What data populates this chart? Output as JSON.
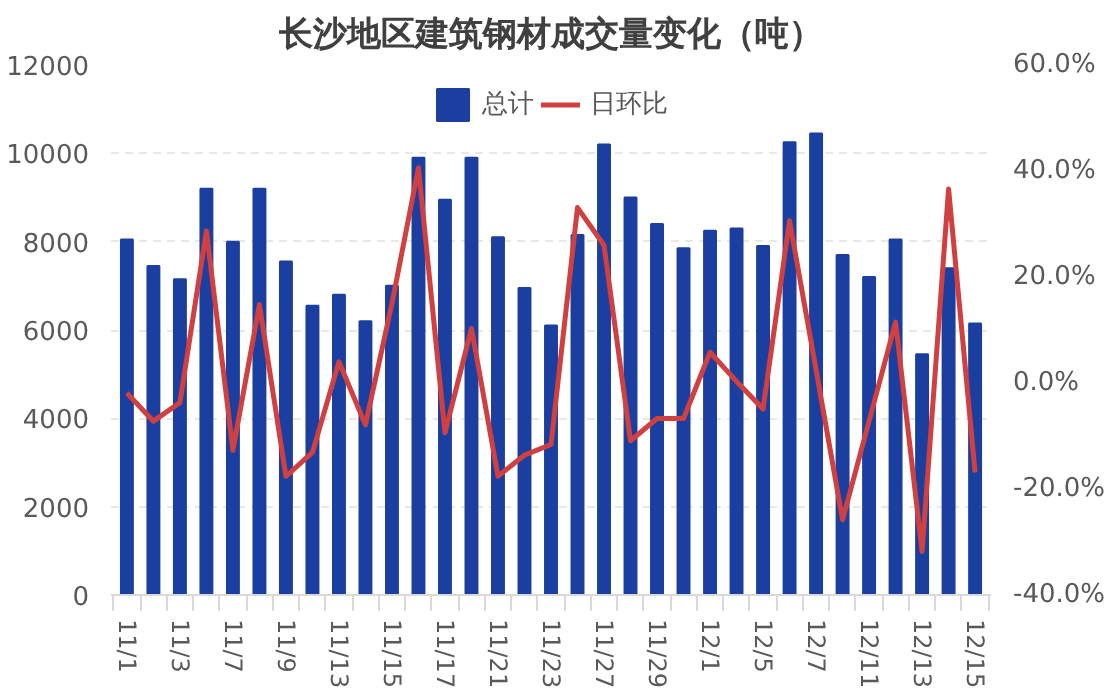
{
  "chart_data": {
    "type": "bar",
    "title": "长沙地区建筑钢材成交量变化（吨）",
    "categories": [
      "11/1",
      null,
      "11/3",
      null,
      "11/7",
      null,
      "11/9",
      null,
      "11/13",
      null,
      "11/15",
      null,
      "11/17",
      null,
      "11/21",
      null,
      "11/23",
      null,
      "11/27",
      null,
      "11/29",
      null,
      "12/1",
      null,
      "12/5",
      null,
      "12/7",
      null,
      "12/11",
      null,
      "12/13",
      null,
      "12/15"
    ],
    "series": [
      {
        "name": "总计",
        "color": "#1a3fa0",
        "values": [
          8050,
          7450,
          7150,
          9200,
          8000,
          9200,
          7550,
          6550,
          6800,
          6200,
          7000,
          9900,
          8950,
          9900,
          8100,
          6950,
          6100,
          8150,
          10200,
          9000,
          8400,
          7850,
          8250,
          8300,
          7900,
          10250,
          10450,
          7700,
          7200,
          8050,
          5450,
          7400,
          6150
        ]
      },
      {
        "name": "日环比",
        "type": "line",
        "axis": "y2",
        "color": "#d04040",
        "values": [
          -1.9,
          -7.2,
          -3.7,
          28.7,
          -12.7,
          14.8,
          -17.6,
          -13.1,
          4.0,
          -7.9,
          15,
          40.6,
          -9.4,
          10.3,
          -17.6,
          -13.6,
          -11.6,
          33.1,
          26.0,
          -10.9,
          -6.7,
          -6.7,
          5.8,
          0.3,
          -4.9,
          30.6,
          2.5,
          -25.8,
          -7.2,
          11.5,
          -31.8,
          36.6,
          -16.9
        ]
      }
    ],
    "ylim": [
      0,
      12000
    ],
    "yticks": [
      0,
      2000,
      4000,
      6000,
      8000,
      10000,
      12000
    ],
    "y2lim": [
      -40,
      60
    ],
    "y2ticks": [
      {
        "value": -40,
        "label": "-40.0%"
      },
      {
        "value": -20,
        "label": "-20.0%"
      },
      {
        "value": 0,
        "label": "0.0%"
      },
      {
        "value": 20,
        "label": "20.0%"
      },
      {
        "value": 40,
        "label": "40.0%"
      },
      {
        "value": 60,
        "label": "60.0%"
      }
    ],
    "grid": "y",
    "legend": "top",
    "marker": "none",
    "line_style": "solid"
  }
}
